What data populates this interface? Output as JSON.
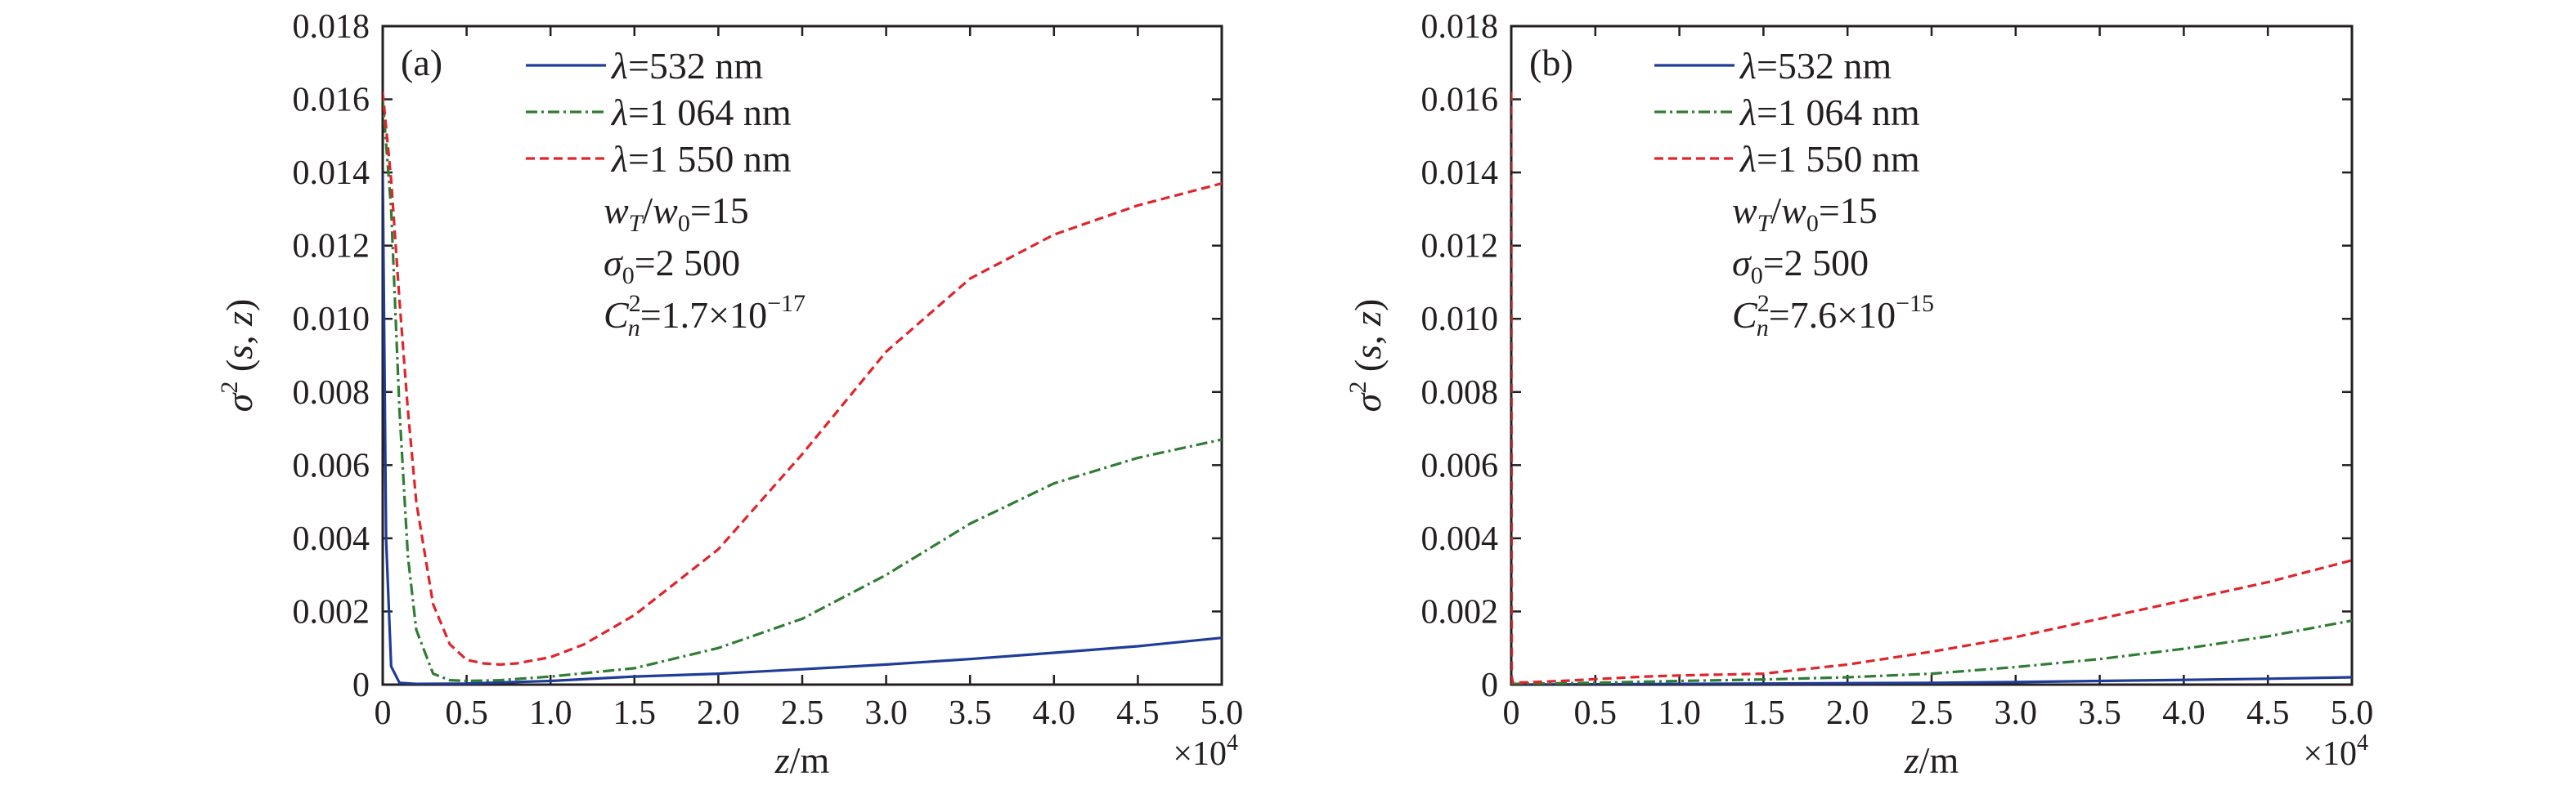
{
  "chart_data": [
    {
      "type": "line",
      "panel_label": "(a)",
      "xlabel": {
        "var": "z",
        "unit": "/m"
      },
      "ylabel": {
        "var": "σ",
        "sup": "2",
        "args": "(s, z)"
      },
      "x_multiplier": {
        "base": "×10",
        "exp": "4"
      },
      "xlim": [
        0,
        5.0
      ],
      "ylim": [
        0,
        0.018
      ],
      "x_ticks": [
        "0",
        "0.5",
        "1.0",
        "1.5",
        "2.0",
        "2.5",
        "3.0",
        "3.5",
        "4.0",
        "4.5",
        "5.0"
      ],
      "y_ticks": [
        "0",
        "0.002",
        "0.004",
        "0.006",
        "0.008",
        "0.010",
        "0.012",
        "0.014",
        "0.016",
        "0.018"
      ],
      "params": [
        {
          "a": "w",
          "asub": "T",
          "b": "/w",
          "bsub": "0",
          "rest": "=15"
        },
        {
          "a": "σ",
          "asub": "0",
          "rest": "=2 500"
        },
        {
          "a": "C",
          "asup": "2",
          "asub": "n",
          "rest": "=1.7×10",
          "rsup": "−17"
        }
      ],
      "series": [
        {
          "name": "λ=532 nm",
          "color": "#1f3c99",
          "dash": "solid",
          "x": [
            0,
            0.02,
            0.05,
            0.1,
            0.2,
            0.5,
            1.0,
            1.5,
            2.0,
            2.5,
            3.0,
            3.5,
            4.0,
            4.5,
            5.0
          ],
          "y": [
            0.014,
            0.004,
            0.0005,
            5e-05,
            2e-05,
            3e-05,
            0.0001,
            0.00022,
            0.0003,
            0.00042,
            0.00055,
            0.0007,
            0.00087,
            0.00105,
            0.00128
          ]
        },
        {
          "name": "λ=1 064 nm",
          "color": "#2f7d32",
          "dash": "dashdot",
          "x": [
            0,
            0.05,
            0.1,
            0.15,
            0.2,
            0.3,
            0.4,
            0.5,
            0.7,
            1.0,
            1.5,
            2.0,
            2.5,
            3.0,
            3.5,
            4.0,
            4.5,
            5.0
          ],
          "y": [
            0.016,
            0.013,
            0.0075,
            0.0035,
            0.0015,
            0.0003,
            0.00012,
            0.0001,
            0.00012,
            0.00022,
            0.00045,
            0.001,
            0.0018,
            0.003,
            0.0044,
            0.0055,
            0.0062,
            0.0067
          ]
        },
        {
          "name": "λ=1 550 nm",
          "color": "#e0242c",
          "dash": "dashed",
          "x": [
            0,
            0.05,
            0.1,
            0.15,
            0.2,
            0.3,
            0.4,
            0.5,
            0.6,
            0.7,
            0.8,
            1.0,
            1.2,
            1.5,
            2.0,
            2.5,
            3.0,
            3.5,
            4.0,
            4.5,
            5.0
          ],
          "y": [
            0.0162,
            0.0138,
            0.0105,
            0.0075,
            0.005,
            0.0022,
            0.0011,
            0.00068,
            0.00058,
            0.00055,
            0.00058,
            0.00075,
            0.0011,
            0.0019,
            0.0037,
            0.0063,
            0.0091,
            0.0111,
            0.0123,
            0.0131,
            0.0137
          ]
        }
      ]
    },
    {
      "type": "line",
      "panel_label": "(b)",
      "xlabel": {
        "var": "z",
        "unit": "/m"
      },
      "ylabel": {
        "var": "σ",
        "sup": "2",
        "args": "(s, z)"
      },
      "x_multiplier": {
        "base": "×10",
        "exp": "4"
      },
      "xlim": [
        0,
        5.0
      ],
      "ylim": [
        0,
        0.018
      ],
      "x_ticks": [
        "0",
        "0.5",
        "1.0",
        "1.5",
        "2.0",
        "2.5",
        "3.0",
        "3.5",
        "4.0",
        "4.5",
        "5.0"
      ],
      "y_ticks": [
        "0",
        "0.002",
        "0.004",
        "0.006",
        "0.008",
        "0.010",
        "0.012",
        "0.014",
        "0.016",
        "0.018"
      ],
      "params": [
        {
          "a": "w",
          "asub": "T",
          "b": "/w",
          "bsub": "0",
          "rest": "=15"
        },
        {
          "a": "σ",
          "asub": "0",
          "rest": "=2 500"
        },
        {
          "a": "C",
          "asup": "2",
          "asub": "n",
          "rest": "=7.6×10",
          "rsup": "−15"
        }
      ],
      "series": [
        {
          "name": "λ=532 nm",
          "color": "#1f3c99",
          "dash": "solid",
          "x": [
            0,
            0.5,
            1.0,
            1.5,
            2.0,
            2.5,
            3.0,
            3.5,
            4.0,
            4.5,
            5.0
          ],
          "y": [
            0,
            1e-05,
            2e-05,
            3e-05,
            4e-05,
            5e-05,
            7e-05,
            0.0001,
            0.00013,
            0.00016,
            0.0002
          ]
        },
        {
          "name": "λ=1 064 nm",
          "color": "#2f7d32",
          "dash": "dashdot",
          "x": [
            0,
            0.5,
            1.0,
            1.5,
            2.0,
            2.5,
            3.0,
            3.5,
            4.0,
            4.5,
            5.0
          ],
          "y": [
            2e-05,
            5e-05,
            0.0001,
            0.00014,
            0.0002,
            0.0003,
            0.00048,
            0.0007,
            0.00098,
            0.00132,
            0.00175
          ]
        },
        {
          "name": "λ=1 550 nm",
          "color": "#e0242c",
          "dash": "dashed",
          "x": [
            0,
            0.003,
            0.01,
            0.3,
            0.5,
            0.8,
            1.0,
            1.5,
            2.0,
            2.5,
            3.0,
            3.5,
            4.0,
            4.5,
            5.0
          ],
          "y": [
            0.0162,
            0.0002,
            5e-05,
            0.0001,
            0.00015,
            0.00022,
            0.00025,
            0.0003,
            0.00055,
            0.0009,
            0.0013,
            0.0018,
            0.0023,
            0.0028,
            0.0034
          ]
        }
      ]
    }
  ]
}
